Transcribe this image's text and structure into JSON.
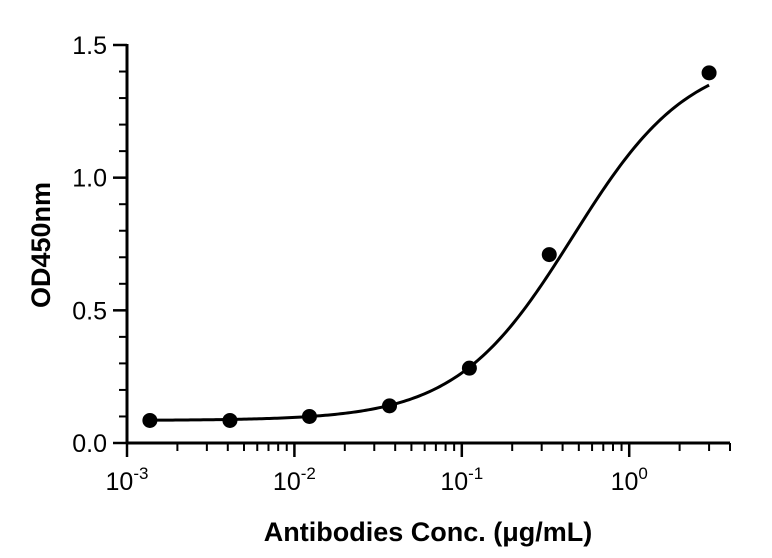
{
  "chart_data": {
    "type": "scatter",
    "title": "",
    "xlabel": "Antibodies Conc. (μg/mL)",
    "ylabel": "OD450nm",
    "x_scale": "log",
    "xlim": [
      0.001,
      4
    ],
    "ylim": [
      0,
      1.5
    ],
    "x_ticks": [
      {
        "base": "10",
        "exp": "-3",
        "value": 0.001
      },
      {
        "base": "10",
        "exp": "-2",
        "value": 0.01
      },
      {
        "base": "10",
        "exp": "-1",
        "value": 0.1
      },
      {
        "base": "10",
        "exp": "0",
        "value": 1
      }
    ],
    "y_ticks": [
      {
        "label": "0.0",
        "value": 0
      },
      {
        "label": "0.5",
        "value": 0.5
      },
      {
        "label": "1.0",
        "value": 1.0
      },
      {
        "label": "1.5",
        "value": 1.5
      }
    ],
    "grid": false,
    "series": [
      {
        "x": [
          0.00137,
          0.00412,
          0.0123,
          0.037,
          0.111,
          0.333,
          3.0
        ],
        "y": [
          0.085,
          0.085,
          0.1,
          0.14,
          0.282,
          0.71,
          1.395
        ]
      }
    ],
    "fit": {
      "type": "4PL sigmoid",
      "bottom": 0.085,
      "top": 1.47,
      "ec50": 0.46,
      "hill": 1.25
    }
  }
}
